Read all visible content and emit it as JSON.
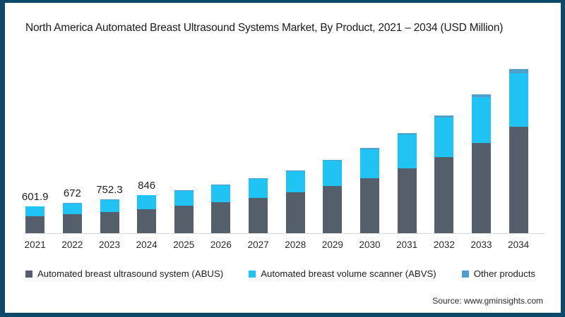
{
  "page": {
    "title": "North America Automated Breast Ultrasound Systems Market, By Product, 2021 – 2034 (USD Million)",
    "source": "Source: www.gminsights.com"
  },
  "colors": {
    "frame_border": "#0e4a68",
    "abus": "#545f6b",
    "abvs": "#1fc4f4",
    "other": "#4f9fca",
    "axis_line": "#d9d9d9"
  },
  "legend": [
    {
      "label": "Automated breast ultrasound system (ABUS)",
      "color": "#545f6b"
    },
    {
      "label": "Automated breast volume scanner (ABVS)",
      "color": "#1fc4f4"
    },
    {
      "label": "Other products",
      "color": "#4f9fca"
    }
  ],
  "chart_data": {
    "type": "bar",
    "stacked": true,
    "title": "North America Automated Breast Ultrasound Systems Market, By Product, 2021 – 2034 (USD Million)",
    "unit": "USD Million",
    "categories": [
      "2021",
      "2022",
      "2023",
      "2024",
      "2025",
      "2026",
      "2027",
      "2028",
      "2029",
      "2030",
      "2031",
      "2032",
      "2033",
      "2034"
    ],
    "series": [
      {
        "name": "Automated breast ultrasound system (ABUS)",
        "values": [
          380,
          422,
          470,
          533,
          611,
          685,
          784,
          909,
          1050,
          1222,
          1442,
          1692,
          2006,
          2366
        ]
      },
      {
        "name": "Automated breast volume scanner (ABVS)",
        "values": [
          215,
          242,
          274,
          306,
          337,
          375,
          423,
          470,
          564,
          650,
          752,
          878,
          1019,
          1190
        ]
      },
      {
        "name": "Other products",
        "values": [
          6.9,
          8,
          8.3,
          7,
          8,
          15,
          15,
          16,
          16,
          24,
          31,
          47,
          63,
          94
        ]
      }
    ],
    "totals": [
      601.9,
      672,
      752.3,
      846,
      956,
      1075,
      1222,
      1395,
      1630,
      1896,
      2225,
      2617,
      3088,
      3650
    ],
    "bar_labels": [
      "601.9",
      "672",
      "752.3",
      "846",
      "",
      "",
      "",
      "",
      "",
      "",
      "",
      "",
      "",
      ""
    ],
    "ylim": [
      0,
      3800
    ],
    "grid": false,
    "legend_position": "bottom",
    "source": "Source: www.gminsights.com"
  }
}
